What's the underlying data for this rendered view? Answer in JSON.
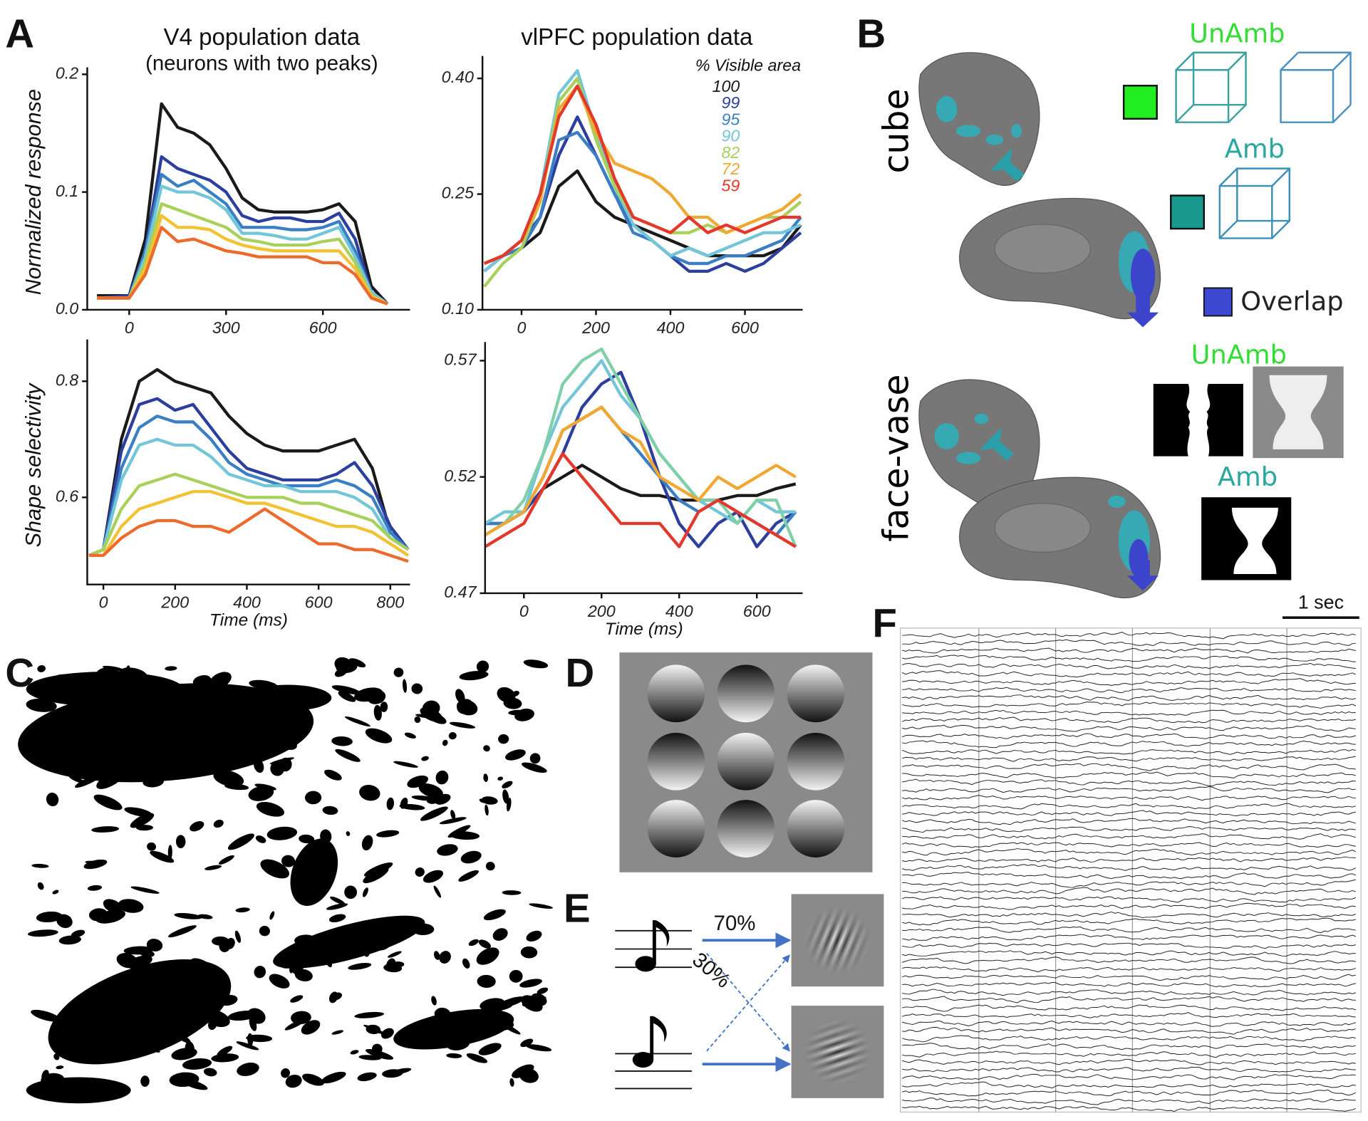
{
  "chart_data": [
    {
      "type": "line",
      "title": "V4 population data",
      "subtitle": "(neurons with two peaks)",
      "ylabel": "Normalized response",
      "x": [
        -100,
        0,
        50,
        100,
        150,
        200,
        250,
        300,
        350,
        400,
        450,
        500,
        550,
        600,
        650,
        700,
        750,
        800
      ],
      "xlim": [
        -130,
        870
      ],
      "xticks": [
        0,
        300,
        600
      ],
      "ylim": [
        0,
        0.2
      ],
      "yticks": [
        {
          "value": 0,
          "label": "0.0"
        },
        0.1,
        0.2
      ],
      "series": [
        {
          "color": "#1a1a1a",
          "values": [
            0.012,
            0.012,
            0.06,
            0.175,
            0.155,
            0.15,
            0.14,
            0.12,
            0.095,
            0.085,
            0.083,
            0.083,
            0.083,
            0.085,
            0.09,
            0.075,
            0.02,
            0.005
          ]
        },
        {
          "color": "#2c3f9e",
          "values": [
            0.01,
            0.012,
            0.05,
            0.13,
            0.12,
            0.115,
            0.11,
            0.1,
            0.08,
            0.075,
            0.078,
            0.078,
            0.075,
            0.075,
            0.082,
            0.06,
            0.015,
            0.005
          ]
        },
        {
          "color": "#3a7fc4",
          "values": [
            0.01,
            0.01,
            0.05,
            0.115,
            0.105,
            0.11,
            0.1,
            0.09,
            0.07,
            0.07,
            0.07,
            0.068,
            0.068,
            0.07,
            0.075,
            0.05,
            0.015,
            0.005
          ]
        },
        {
          "color": "#72c6d8",
          "values": [
            0.01,
            0.01,
            0.045,
            0.105,
            0.1,
            0.1,
            0.095,
            0.085,
            0.065,
            0.065,
            0.063,
            0.06,
            0.06,
            0.065,
            0.07,
            0.045,
            0.015,
            0.005
          ]
        },
        {
          "color": "#a8d05a",
          "values": [
            0.01,
            0.01,
            0.04,
            0.09,
            0.085,
            0.08,
            0.075,
            0.07,
            0.06,
            0.058,
            0.055,
            0.055,
            0.055,
            0.058,
            0.06,
            0.04,
            0.012,
            0.005
          ]
        },
        {
          "color": "#f2c232",
          "values": [
            0.01,
            0.01,
            0.035,
            0.08,
            0.07,
            0.07,
            0.068,
            0.06,
            0.055,
            0.052,
            0.05,
            0.05,
            0.05,
            0.05,
            0.05,
            0.035,
            0.012,
            0.005
          ]
        },
        {
          "color": "#ec6a2c",
          "values": [
            0.01,
            0.01,
            0.03,
            0.07,
            0.058,
            0.06,
            0.055,
            0.05,
            0.048,
            0.045,
            0.045,
            0.045,
            0.045,
            0.04,
            0.04,
            0.03,
            0.01,
            0.005
          ]
        }
      ]
    },
    {
      "type": "line",
      "title": "vlPFC population data",
      "legend_title": "% Visible area",
      "legend": "upper right",
      "x": [
        -100,
        -50,
        0,
        50,
        100,
        150,
        200,
        250,
        300,
        350,
        400,
        450,
        500,
        550,
        600,
        650,
        700,
        750
      ],
      "xlim": [
        -105,
        755
      ],
      "xticks": [
        0,
        200,
        400,
        600
      ],
      "ylim": [
        0.1,
        0.42
      ],
      "yticks": [
        {
          "value": 0.1,
          "label": "0.10"
        },
        0.25,
        {
          "value": 0.4,
          "label": "0.40"
        }
      ],
      "series": [
        {
          "name": "100",
          "color": "#1a1a1a",
          "values": [
            0.16,
            0.17,
            0.18,
            0.2,
            0.26,
            0.28,
            0.24,
            0.22,
            0.21,
            0.2,
            0.19,
            0.18,
            0.17,
            0.17,
            0.17,
            0.17,
            0.18,
            0.21
          ]
        },
        {
          "name": "99",
          "color": "#2c3f9e",
          "values": [
            0.15,
            0.17,
            0.19,
            0.22,
            0.3,
            0.35,
            0.3,
            0.25,
            0.21,
            0.19,
            0.17,
            0.15,
            0.15,
            0.16,
            0.15,
            0.16,
            0.18,
            0.2
          ]
        },
        {
          "name": "95",
          "color": "#3a7fc4",
          "values": [
            0.16,
            0.17,
            0.18,
            0.22,
            0.32,
            0.33,
            0.3,
            0.25,
            0.2,
            0.19,
            0.17,
            0.16,
            0.16,
            0.17,
            0.17,
            0.18,
            0.19,
            0.22
          ]
        },
        {
          "name": "90",
          "color": "#72c6d8",
          "values": [
            0.15,
            0.17,
            0.19,
            0.25,
            0.38,
            0.41,
            0.33,
            0.26,
            0.21,
            0.19,
            0.17,
            0.18,
            0.17,
            0.18,
            0.19,
            0.2,
            0.2,
            0.21
          ]
        },
        {
          "name": "82",
          "color": "#a8d05a",
          "values": [
            0.13,
            0.16,
            0.18,
            0.24,
            0.37,
            0.4,
            0.32,
            0.26,
            0.22,
            0.21,
            0.2,
            0.2,
            0.21,
            0.2,
            0.21,
            0.22,
            0.22,
            0.24
          ]
        },
        {
          "name": "72",
          "color": "#f0a832",
          "values": [
            0.16,
            0.17,
            0.19,
            0.24,
            0.36,
            0.39,
            0.33,
            0.29,
            0.28,
            0.27,
            0.25,
            0.22,
            0.22,
            0.2,
            0.21,
            0.22,
            0.23,
            0.25
          ]
        },
        {
          "name": "59",
          "color": "#e3382a",
          "values": [
            0.16,
            0.17,
            0.19,
            0.25,
            0.35,
            0.39,
            0.34,
            0.27,
            0.22,
            0.21,
            0.2,
            0.22,
            0.2,
            0.21,
            0.2,
            0.21,
            0.22,
            0.22
          ]
        }
      ]
    },
    {
      "type": "line",
      "ylabel": "Shape selectivity",
      "xlabel": "Time (ms)",
      "x": [
        -40,
        0,
        50,
        100,
        150,
        200,
        250,
        300,
        350,
        400,
        450,
        500,
        550,
        600,
        650,
        700,
        750,
        800,
        850
      ],
      "xlim": [
        -45,
        855
      ],
      "xticks": [
        0,
        200,
        400,
        600,
        800
      ],
      "ylim": [
        0.45,
        0.86
      ],
      "yticks": [
        0.6,
        0.8
      ],
      "series": [
        {
          "color": "#1a1a1a",
          "values": [
            0.5,
            0.51,
            0.7,
            0.8,
            0.82,
            0.8,
            0.79,
            0.78,
            0.74,
            0.71,
            0.69,
            0.68,
            0.68,
            0.68,
            0.69,
            0.7,
            0.65,
            0.54,
            0.51
          ]
        },
        {
          "color": "#2c3f9e",
          "values": [
            0.5,
            0.51,
            0.68,
            0.76,
            0.77,
            0.75,
            0.76,
            0.72,
            0.68,
            0.65,
            0.64,
            0.63,
            0.63,
            0.63,
            0.64,
            0.66,
            0.62,
            0.55,
            0.51
          ]
        },
        {
          "color": "#3a7fc4",
          "values": [
            0.5,
            0.51,
            0.65,
            0.72,
            0.74,
            0.73,
            0.73,
            0.7,
            0.66,
            0.64,
            0.63,
            0.62,
            0.62,
            0.62,
            0.63,
            0.62,
            0.6,
            0.54,
            0.51
          ]
        },
        {
          "color": "#72c6d8",
          "values": [
            0.5,
            0.51,
            0.63,
            0.69,
            0.7,
            0.69,
            0.69,
            0.67,
            0.64,
            0.63,
            0.62,
            0.62,
            0.61,
            0.61,
            0.61,
            0.6,
            0.58,
            0.53,
            0.51
          ]
        },
        {
          "color": "#a8d05a",
          "values": [
            0.5,
            0.51,
            0.58,
            0.62,
            0.63,
            0.64,
            0.63,
            0.62,
            0.61,
            0.6,
            0.6,
            0.6,
            0.59,
            0.59,
            0.58,
            0.57,
            0.56,
            0.53,
            0.51
          ]
        },
        {
          "color": "#f2c232",
          "values": [
            0.5,
            0.5,
            0.55,
            0.58,
            0.59,
            0.6,
            0.61,
            0.61,
            0.6,
            0.59,
            0.59,
            0.58,
            0.57,
            0.56,
            0.55,
            0.55,
            0.54,
            0.52,
            0.5
          ]
        },
        {
          "color": "#ec6a2c",
          "values": [
            0.5,
            0.5,
            0.53,
            0.55,
            0.56,
            0.56,
            0.55,
            0.55,
            0.54,
            0.56,
            0.58,
            0.56,
            0.54,
            0.52,
            0.52,
            0.51,
            0.51,
            0.5,
            0.49
          ]
        }
      ]
    },
    {
      "type": "line",
      "xlabel": "Time (ms)",
      "x": [
        -100,
        -50,
        0,
        50,
        100,
        150,
        200,
        250,
        300,
        350,
        400,
        450,
        500,
        550,
        600,
        650,
        700
      ],
      "xlim": [
        -100,
        718
      ],
      "xticks": [
        0,
        200,
        400,
        600
      ],
      "ylim": [
        0.47,
        0.575
      ],
      "yticks": [
        0.47,
        0.52,
        0.57
      ],
      "series": [
        {
          "color": "#1a1a1a",
          "values": [
            0.5,
            0.5,
            0.505,
            0.515,
            0.52,
            0.525,
            0.52,
            0.515,
            0.512,
            0.512,
            0.51,
            0.51,
            0.51,
            0.512,
            0.512,
            0.515,
            0.517
          ]
        },
        {
          "color": "#2c3f9e",
          "values": [
            0.5,
            0.5,
            0.505,
            0.515,
            0.53,
            0.55,
            0.56,
            0.565,
            0.545,
            0.52,
            0.5,
            0.49,
            0.5,
            0.505,
            0.49,
            0.5,
            0.505
          ]
        },
        {
          "color": "#3a7fc4",
          "values": [
            0.5,
            0.5,
            0.505,
            0.52,
            0.54,
            0.545,
            0.55,
            0.54,
            0.53,
            0.52,
            0.51,
            0.505,
            0.51,
            0.505,
            0.5,
            0.495,
            0.505
          ]
        },
        {
          "color": "#72c6d8",
          "values": [
            0.5,
            0.505,
            0.505,
            0.53,
            0.55,
            0.56,
            0.57,
            0.555,
            0.545,
            0.53,
            0.52,
            0.51,
            0.505,
            0.5,
            0.51,
            0.505,
            0.505
          ]
        },
        {
          "color": "#7fd0a8",
          "values": [
            0.495,
            0.5,
            0.51,
            0.53,
            0.56,
            0.57,
            0.575,
            0.56,
            0.545,
            0.53,
            0.52,
            0.51,
            0.51,
            0.5,
            0.51,
            0.51,
            0.49
          ]
        },
        {
          "color": "#f0a832",
          "values": [
            0.495,
            0.5,
            0.505,
            0.52,
            0.54,
            0.545,
            0.55,
            0.54,
            0.535,
            0.52,
            0.515,
            0.51,
            0.52,
            0.515,
            0.52,
            0.525,
            0.52
          ]
        },
        {
          "color": "#e3382a",
          "values": [
            0.49,
            0.495,
            0.5,
            0.515,
            0.53,
            0.52,
            0.51,
            0.5,
            0.5,
            0.5,
            0.49,
            0.505,
            0.51,
            0.505,
            0.5,
            0.495,
            0.49
          ]
        }
      ]
    }
  ],
  "panels": {
    "labels": [
      "A",
      "B",
      "C",
      "D",
      "E",
      "F"
    ]
  },
  "panel_b": {
    "rows": [
      {
        "label": "cube",
        "unamb": "UnAmb",
        "amb": "Amb"
      },
      {
        "label": "face-vase",
        "unamb": "UnAmb",
        "amb": "Amb"
      }
    ],
    "overlap": "Overlap"
  },
  "panel_e": {
    "high": "70%",
    "low": "30%"
  },
  "panel_f": {
    "scale": "1 sec"
  }
}
